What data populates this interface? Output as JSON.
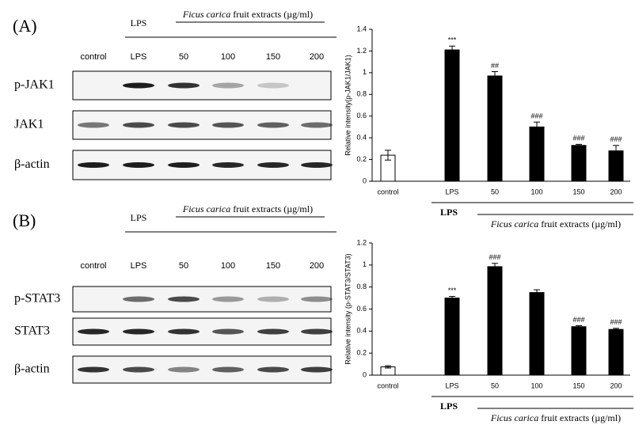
{
  "panels": [
    {
      "label": "(A)",
      "group_labels": {
        "lps": "LPS",
        "extract_italic": "Ficus carica",
        "extract_rest": " fruit extracts (µg/ml)"
      },
      "lanes": [
        "control",
        "LPS",
        "50",
        "100",
        "150",
        "200"
      ],
      "rows": [
        "p-JAK1",
        "JAK1",
        "β-actin"
      ]
    },
    {
      "label": "(B)",
      "group_labels": {
        "lps": "LPS",
        "extract_italic": "Ficus carica",
        "extract_rest": " fruit extracts (µg/ml)"
      },
      "lanes": [
        "control",
        "LPS",
        "50",
        "100",
        "150",
        "200"
      ],
      "rows": [
        "p-STAT3",
        "STAT3",
        "β-actin"
      ]
    }
  ],
  "chart_data": [
    {
      "type": "bar",
      "y_label": "Relative intensity(p-JAK1/JAK1)",
      "categories": [
        "control",
        "LPS",
        "50",
        "100",
        "150",
        "200"
      ],
      "values": [
        0.24,
        1.21,
        0.97,
        0.5,
        0.33,
        0.28
      ],
      "errors": [
        0.045,
        0.035,
        0.04,
        0.045,
        0.01,
        0.05
      ],
      "annotations": [
        null,
        "***",
        "##",
        "###",
        "###",
        "###"
      ],
      "colors": [
        "#ffffff",
        "#000000",
        "#000000",
        "#000000",
        "#000000",
        "#000000"
      ],
      "group_labels": {
        "lps": "LPS",
        "extract_italic": "Ficus carica",
        "extract_rest": " fruit extracts  (µg/ml)"
      },
      "ylim": [
        0,
        1.4
      ],
      "yticks": [
        0,
        0.2,
        0.4,
        0.6,
        0.8,
        1,
        1.2,
        1.4
      ]
    },
    {
      "type": "bar",
      "y_label": "Relative intensity (p-STAT3/STAT3)",
      "categories": [
        "control",
        "LPS",
        "50",
        "100",
        "150",
        "200"
      ],
      "values": [
        0.075,
        0.7,
        0.985,
        0.75,
        0.44,
        0.415
      ],
      "errors": [
        0.01,
        0.015,
        0.03,
        0.025,
        0.01,
        0.01
      ],
      "annotations": [
        null,
        "***",
        "###",
        null,
        "###",
        "###"
      ],
      "colors": [
        "#ffffff",
        "#000000",
        "#000000",
        "#000000",
        "#000000",
        "#000000"
      ],
      "group_labels": {
        "lps": "LPS",
        "extract_italic": "Ficus carica",
        "extract_rest": " fruit extracts  (µg/ml)"
      },
      "ylim": [
        0,
        1.2
      ],
      "yticks": [
        0,
        0.2,
        0.4,
        0.6,
        0.8,
        1,
        1.2
      ]
    }
  ]
}
